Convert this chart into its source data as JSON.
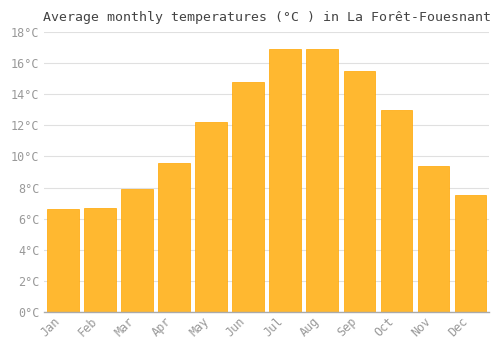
{
  "title": "Average monthly temperatures (°C ) in La Forêt-Fouesnant",
  "months": [
    "Jan",
    "Feb",
    "Mar",
    "Apr",
    "May",
    "Jun",
    "Jul",
    "Aug",
    "Sep",
    "Oct",
    "Nov",
    "Dec"
  ],
  "values": [
    6.6,
    6.7,
    7.9,
    9.6,
    12.2,
    14.8,
    16.9,
    16.9,
    15.5,
    13.0,
    9.4,
    7.5
  ],
  "bar_color_face": "#FFB830",
  "bar_color_edge": "#FFA500",
  "background_color": "#ffffff",
  "grid_color": "#e0e0e0",
  "title_fontsize": 9.5,
  "tick_fontsize": 8.5,
  "ylim": [
    0,
    18
  ],
  "yticks": [
    0,
    2,
    4,
    6,
    8,
    10,
    12,
    14,
    16,
    18
  ]
}
